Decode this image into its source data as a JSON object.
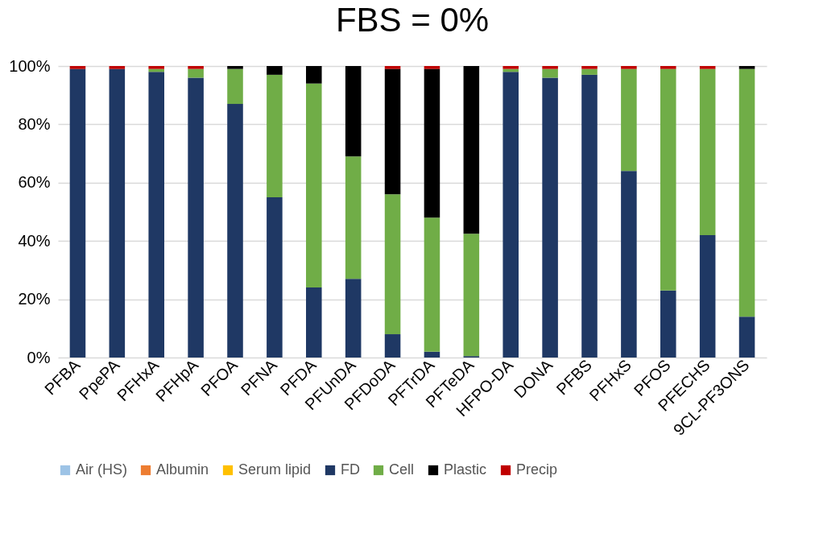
{
  "chart_data": {
    "type": "bar",
    "title": "FBS = 0%",
    "stacked": true,
    "categories": [
      "PFBA",
      "PpePA",
      "PFHxA",
      "PFHpA",
      "PFOA",
      "PFNA",
      "PFDA",
      "PFUnDA",
      "PFDoDA",
      "PFTrDA",
      "PFTeDA",
      "HFPO-DA",
      "DONA",
      "PFBS",
      "PFHxS",
      "PFOS",
      "PFECHS",
      "9CL-PF3ONS"
    ],
    "series": [
      {
        "name": "Air (HS)",
        "color": "#9dc3e6",
        "values": [
          0,
          0,
          0,
          0,
          0,
          0,
          0,
          0,
          0,
          0,
          0,
          0,
          0,
          0,
          0,
          0,
          0,
          0
        ]
      },
      {
        "name": "Albumin",
        "color": "#ed7d31",
        "values": [
          0,
          0,
          0,
          0,
          0,
          0,
          0,
          0,
          0,
          0,
          0,
          0,
          0,
          0,
          0,
          0,
          0,
          0
        ]
      },
      {
        "name": "Serum lipid",
        "color": "#ffc000",
        "values": [
          0,
          0,
          0,
          0,
          0,
          0,
          0,
          0,
          0,
          0,
          0,
          0,
          0,
          0,
          0,
          0,
          0,
          0
        ]
      },
      {
        "name": "FD",
        "color": "#1f3864",
        "values": [
          99,
          99,
          98,
          96,
          87,
          55,
          24,
          27,
          8,
          2,
          0.5,
          98,
          96,
          97,
          64,
          23,
          42,
          14
        ]
      },
      {
        "name": "Cell",
        "color": "#70ad47",
        "values": [
          0,
          0,
          1,
          3,
          12,
          42,
          70,
          42,
          48,
          46,
          42,
          1,
          3,
          2,
          35,
          76,
          57,
          85
        ]
      },
      {
        "name": "Plastic",
        "color": "#000000",
        "values": [
          0,
          0,
          0,
          0,
          1,
          3,
          6,
          31,
          43,
          51,
          57.5,
          0,
          0,
          0,
          0,
          0,
          0,
          1
        ]
      },
      {
        "name": "Precip",
        "color": "#c00000",
        "values": [
          1,
          1,
          1,
          1,
          0,
          0,
          0,
          0,
          1,
          1,
          0,
          1,
          1,
          1,
          1,
          1,
          1,
          0
        ]
      }
    ],
    "ylim": [
      0,
      100
    ],
    "yticks": [
      {
        "value": 0,
        "label": "0%"
      },
      {
        "value": 20,
        "label": "20%"
      },
      {
        "value": 40,
        "label": "40%"
      },
      {
        "value": 60,
        "label": "60%"
      },
      {
        "value": 80,
        "label": "80%"
      },
      {
        "value": 100,
        "label": "100%"
      }
    ],
    "grid": "y",
    "legend": "bottom"
  }
}
